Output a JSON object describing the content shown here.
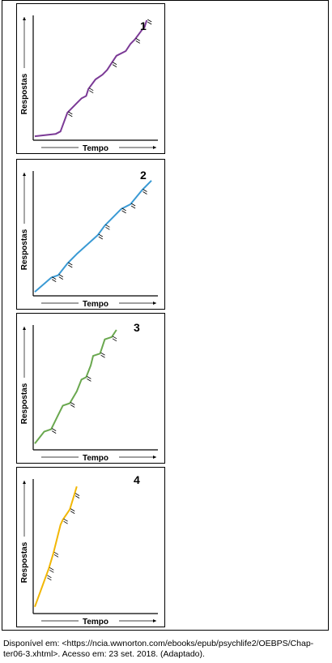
{
  "caption": {
    "line1": "Disponível em: <https://ncia.wwnorton.com/ebooks/epub/psychlife2/OEBPS/Chap-",
    "line2": "ter06-3.xhtml>. Acesso em: 23 set. 2018. (Adaptado)."
  },
  "chart_data": [
    {
      "type": "line",
      "number": "1",
      "xlabel": "Tempo",
      "ylabel": "Respostas",
      "color": "#7b3a96",
      "xlim": [
        0,
        100
      ],
      "ylim": [
        0,
        100
      ],
      "points": [
        [
          0,
          2
        ],
        [
          18,
          4
        ],
        [
          22,
          6
        ],
        [
          28,
          22
        ],
        [
          40,
          34
        ],
        [
          44,
          36
        ],
        [
          46,
          42
        ],
        [
          52,
          50
        ],
        [
          58,
          54
        ],
        [
          62,
          58
        ],
        [
          66,
          64
        ],
        [
          70,
          70
        ],
        [
          78,
          74
        ],
        [
          82,
          80
        ],
        [
          86,
          84
        ],
        [
          92,
          92
        ],
        [
          94,
          94
        ],
        [
          96,
          100
        ]
      ],
      "marks": [
        [
          28,
          22
        ],
        [
          46,
          42
        ],
        [
          66,
          64
        ],
        [
          86,
          84
        ],
        [
          96,
          100
        ]
      ]
    },
    {
      "type": "line",
      "number": "2",
      "xlabel": "Tempo",
      "ylabel": "Respostas",
      "color": "#3a9ad4",
      "xlim": [
        0,
        100
      ],
      "ylim": [
        0,
        100
      ],
      "points": [
        [
          0,
          2
        ],
        [
          14,
          14
        ],
        [
          20,
          16
        ],
        [
          28,
          26
        ],
        [
          36,
          34
        ],
        [
          54,
          50
        ],
        [
          60,
          58
        ],
        [
          74,
          72
        ],
        [
          82,
          76
        ],
        [
          92,
          88
        ],
        [
          100,
          96
        ]
      ],
      "marks": [
        [
          14,
          14
        ],
        [
          20,
          16
        ],
        [
          28,
          26
        ],
        [
          54,
          50
        ],
        [
          60,
          58
        ],
        [
          74,
          72
        ],
        [
          82,
          76
        ],
        [
          92,
          88
        ]
      ]
    },
    {
      "type": "line",
      "number": "3",
      "xlabel": "Tempo",
      "ylabel": "Respostas",
      "color": "#6aa84f",
      "xlim": [
        0,
        100
      ],
      "ylim": [
        0,
        100
      ],
      "points": [
        [
          0,
          4
        ],
        [
          8,
          14
        ],
        [
          14,
          16
        ],
        [
          20,
          28
        ],
        [
          24,
          36
        ],
        [
          30,
          38
        ],
        [
          36,
          48
        ],
        [
          40,
          58
        ],
        [
          44,
          60
        ],
        [
          48,
          70
        ],
        [
          50,
          78
        ],
        [
          56,
          80
        ],
        [
          60,
          92
        ],
        [
          66,
          94
        ],
        [
          70,
          100
        ]
      ],
      "marks": [
        [
          14,
          16
        ],
        [
          30,
          38
        ],
        [
          44,
          60
        ],
        [
          56,
          80
        ],
        [
          66,
          94
        ]
      ]
    },
    {
      "type": "line",
      "number": "4",
      "xlabel": "Tempo",
      "ylabel": "Respostas",
      "color": "#f2b705",
      "xlim": [
        0,
        100
      ],
      "ylim": [
        0,
        100
      ],
      "points": [
        [
          0,
          4
        ],
        [
          8,
          24
        ],
        [
          12,
          34
        ],
        [
          16,
          46
        ],
        [
          22,
          68
        ],
        [
          24,
          72
        ],
        [
          30,
          80
        ],
        [
          32,
          86
        ],
        [
          34,
          92
        ],
        [
          36,
          98
        ]
      ],
      "marks": [
        [
          10,
          28
        ],
        [
          12,
          34
        ],
        [
          16,
          46
        ],
        [
          24,
          72
        ],
        [
          30,
          80
        ],
        [
          34,
          92
        ]
      ]
    }
  ]
}
